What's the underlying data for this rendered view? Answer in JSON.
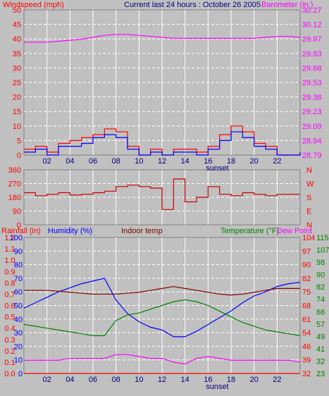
{
  "header": {
    "windspeed_label": "Windspeed (mph)",
    "title": "Current last 24 hours : October 26 2005",
    "barometer_label": "Barometer (in.)"
  },
  "colors": {
    "background": "#c0c0c0",
    "grid": "#ffffff",
    "wind_speed": "#ff0000",
    "wind_gust": "#0000ff",
    "barometer": "#ff00ff",
    "direction": "#cc0000",
    "humidity": "#0000ff",
    "indoor_temp": "#800000",
    "temperature": "#008000",
    "dew_point": "#ff00ff",
    "rainfall": "#ff0000"
  },
  "chart_data": [
    {
      "type": "line",
      "panel": "wind_barometer",
      "x_ticks": [
        "02",
        "04",
        "06",
        "08",
        "10",
        "12",
        "14",
        "16",
        "18",
        "20",
        "22"
      ],
      "x_annotation": "sunset",
      "left_axis": {
        "label": "Windspeed (mph)",
        "ylim": [
          0,
          50
        ],
        "ticks": [
          "0",
          "5",
          "10",
          "15",
          "20",
          "25",
          "30",
          "35",
          "40",
          "45",
          "50"
        ]
      },
      "right_axis": {
        "label": "Barometer (in.)",
        "ylim": [
          28.79,
          30.27
        ],
        "ticks": [
          "28.79",
          "28.94",
          "29.09",
          "29.23",
          "29.38",
          "29.53",
          "29.68",
          "29.83",
          "29.97",
          "30.12",
          "30.27"
        ]
      },
      "hours": [
        0,
        1,
        2,
        3,
        4,
        5,
        6,
        7,
        8,
        9,
        10,
        11,
        12,
        13,
        14,
        15,
        16,
        17,
        18,
        19,
        20,
        21,
        22,
        23,
        24
      ],
      "series": [
        {
          "name": "Barometer",
          "axis": "right",
          "color": "#ff00ff",
          "values": [
            29.94,
            29.94,
            29.94,
            29.95,
            29.96,
            29.97,
            29.99,
            30.01,
            30.02,
            30.02,
            30.01,
            30.0,
            29.99,
            29.98,
            29.98,
            29.98,
            29.98,
            29.98,
            29.98,
            29.98,
            29.98,
            29.99,
            30.0,
            30.0,
            29.99
          ]
        },
        {
          "name": "Wind speed",
          "axis": "left",
          "color": "#ff0000",
          "values": [
            2,
            3,
            1,
            4,
            5,
            6,
            7,
            9,
            8,
            3,
            0,
            2,
            0,
            2,
            2,
            1,
            3,
            7,
            10,
            8,
            4,
            3,
            0,
            0,
            1
          ]
        },
        {
          "name": "Wind gust",
          "axis": "left",
          "color": "#0000ff",
          "values": [
            1,
            2,
            0,
            3,
            3,
            4,
            6,
            7,
            6,
            2,
            0,
            1,
            0,
            1,
            1,
            0,
            2,
            5,
            8,
            6,
            3,
            2,
            0,
            0,
            1
          ]
        }
      ]
    },
    {
      "type": "line",
      "panel": "wind_direction",
      "left_axis": {
        "ylim": [
          0,
          360
        ],
        "ticks": [
          "0",
          "90",
          "180",
          "270",
          "360"
        ]
      },
      "right_axis": {
        "ticks": [
          "N",
          "E",
          "S",
          "W",
          "N"
        ]
      },
      "hours": [
        0,
        1,
        2,
        3,
        4,
        5,
        6,
        7,
        8,
        9,
        10,
        11,
        12,
        13,
        14,
        15,
        16,
        17,
        18,
        19,
        20,
        21,
        22,
        23,
        24
      ],
      "series": [
        {
          "name": "Wind direction",
          "color": "#cc0000",
          "values": [
            210,
            190,
            200,
            210,
            195,
            200,
            210,
            220,
            250,
            260,
            250,
            240,
            100,
            300,
            150,
            180,
            250,
            200,
            190,
            210,
            200,
            190,
            200,
            200,
            200
          ]
        }
      ]
    },
    {
      "type": "line",
      "panel": "temp_humidity_rain",
      "x_ticks": [
        "02",
        "04",
        "06",
        "08",
        "10",
        "12",
        "14",
        "16",
        "18",
        "20",
        "22"
      ],
      "x_annotation": "sunset",
      "labels": {
        "rainfall": "Rainfall (in)",
        "humidity": "Humidity (%)",
        "indoor": "Indoor temp",
        "temperature": "Temperature (°F)",
        "dew_point": "Dew Point"
      },
      "axes": {
        "rain": {
          "ticks": [
            "0.0",
            "0.1",
            "0.2",
            "0.3",
            "0.4",
            "0.5",
            "0.6",
            "0.7",
            "0.8",
            "0.9",
            "1.0",
            "1.1",
            "1.2"
          ]
        },
        "humidity": {
          "ticks": [
            "0",
            "10",
            "20",
            "30",
            "40",
            "50",
            "60",
            "70",
            "80",
            "90",
            "100"
          ]
        },
        "temp_right_1": {
          "ticks": [
            "32",
            "39",
            "46",
            "54",
            "61",
            "68",
            "75",
            "82",
            "90",
            "97",
            "104"
          ]
        },
        "temp_right_2": {
          "ticks": [
            "23",
            "32",
            "41",
            "49",
            "57",
            "66",
            "74",
            "82",
            "90",
            "98",
            "107",
            "115"
          ]
        }
      },
      "hours": [
        0,
        1,
        2,
        3,
        4,
        5,
        6,
        7,
        8,
        9,
        10,
        11,
        12,
        13,
        14,
        15,
        16,
        17,
        18,
        19,
        20,
        21,
        22,
        23,
        24
      ],
      "series": [
        {
          "name": "Humidity",
          "axis": "humidity",
          "color": "#0000ff",
          "values": [
            48,
            52,
            56,
            60,
            63,
            66,
            68,
            70,
            54,
            44,
            38,
            34,
            32,
            27,
            27,
            31,
            36,
            41,
            46,
            52,
            57,
            60,
            64,
            66,
            67
          ]
        },
        {
          "name": "Indoor temp",
          "axis": "temp",
          "color": "#800000",
          "values": [
            76,
            76,
            76,
            75.5,
            75,
            74.5,
            74,
            74,
            74,
            74.5,
            75,
            76,
            77,
            78,
            77,
            76,
            75,
            74,
            73.5,
            74,
            75,
            76,
            77,
            77,
            77
          ]
        },
        {
          "name": "Temperature",
          "axis": "temp",
          "color": "#008000",
          "values": [
            58,
            57,
            56,
            55,
            54,
            53,
            52,
            52,
            60,
            63,
            64,
            66,
            68,
            70,
            71,
            70,
            68,
            65,
            62,
            59,
            57,
            55,
            54,
            53,
            52
          ]
        },
        {
          "name": "Dew Point",
          "axis": "temp",
          "color": "#ff00ff",
          "values": [
            39,
            39,
            39,
            39,
            40,
            40,
            40,
            40,
            42,
            42,
            41,
            40,
            40,
            38,
            37,
            40,
            41,
            40,
            39,
            39,
            39,
            39,
            39,
            39,
            38
          ]
        },
        {
          "name": "Rainfall",
          "axis": "rain",
          "color": "#ff0000",
          "values": [
            0,
            0,
            0,
            0,
            0,
            0,
            0,
            0,
            0,
            0,
            0,
            0,
            0,
            0,
            0,
            0,
            0,
            0,
            0,
            0,
            0,
            0,
            0,
            0,
            0
          ]
        }
      ]
    }
  ]
}
